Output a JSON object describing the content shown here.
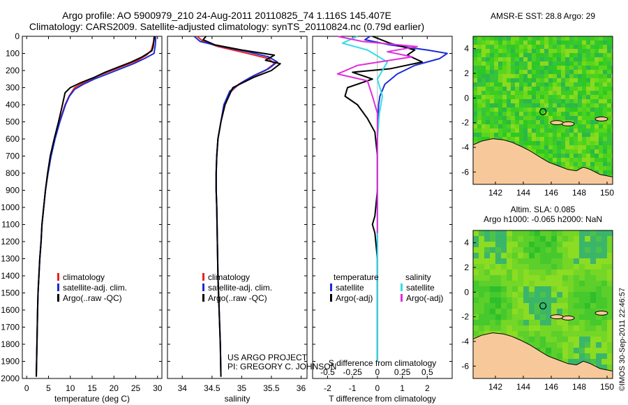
{
  "title_line1": "Argo profile: AO 5900979_210 24-Aug-2011 20110825_74 1.116S 145.407E",
  "title_line2": "Climatology: CARS2009. Satellite-adjusted climatology: synTS_20110824.nc (0.79d earlier)",
  "credit_project": "US ARGO PROJECT",
  "credit_pi": "PI: GREGORY C. JOHNSON",
  "timestamp": "©IMOS 30-Sep-2011 22:46:57",
  "colors": {
    "climatology": "#e8231d",
    "satellite": "#1c2bd6",
    "argo": "#000000",
    "sat_salinity": "#33dde6",
    "argo_salinity": "#e22ddd",
    "land": "#f7c99a",
    "ocean_a": "#33cc22",
    "ocean_b": "#88dd22"
  },
  "chart_data": [
    {
      "type": "line",
      "id": "temperature",
      "xlabel": "temperature (deg C)",
      "xlim": [
        -1,
        31
      ],
      "xticks": [
        0,
        5,
        10,
        15,
        20,
        25,
        30
      ],
      "ylim": [
        2000,
        0
      ],
      "yticks": [
        0,
        100,
        200,
        300,
        400,
        500,
        600,
        700,
        800,
        900,
        1000,
        1100,
        1200,
        1300,
        1400,
        1500,
        1600,
        1700,
        1800,
        1900,
        2000
      ],
      "legend": [
        "climatology",
        "satellite-adj. clim.",
        "Argo(..raw -QC)"
      ],
      "series": [
        {
          "name": "climatology",
          "color_key": "climatology",
          "x": [
            29.2,
            29.1,
            28.6,
            27.5,
            25.5,
            22.5,
            19.5,
            16.5,
            13.5,
            11.0,
            9.7,
            8.8,
            7.5,
            6.4,
            5.5,
            4.8,
            4.3,
            3.9,
            3.5,
            3.3,
            3.0,
            2.8,
            2.6,
            2.5,
            2.35,
            2.2
          ],
          "y": [
            0,
            30,
            80,
            110,
            140,
            170,
            200,
            230,
            265,
            300,
            350,
            400,
            500,
            600,
            700,
            800,
            900,
            1000,
            1100,
            1200,
            1300,
            1400,
            1500,
            1600,
            1800,
            1990
          ]
        },
        {
          "name": "satellite-adj. clim.",
          "color_key": "satellite",
          "x": [
            29.6,
            29.5,
            29.2,
            27.0,
            24.5,
            21.5,
            18.5,
            15.5,
            13.0,
            11.0,
            9.8,
            8.9,
            7.6,
            6.5,
            5.6,
            4.9,
            4.3,
            3.9,
            3.5,
            3.3,
            3.0,
            2.8,
            2.6,
            2.5,
            2.35,
            2.2
          ],
          "y": [
            0,
            50,
            100,
            130,
            160,
            190,
            220,
            250,
            280,
            310,
            350,
            400,
            500,
            600,
            700,
            800,
            900,
            1000,
            1100,
            1200,
            1300,
            1400,
            1500,
            1600,
            1800,
            1990
          ]
        },
        {
          "name": "Argo(..raw -QC)",
          "color_key": "argo",
          "x": [
            29.3,
            29.0,
            28.7,
            26.5,
            24.0,
            21.0,
            18.0,
            15.5,
            12.5,
            10.0,
            8.8,
            8.2,
            7.3,
            6.3,
            5.4,
            4.8,
            4.3,
            3.9,
            3.5,
            3.3,
            3.0,
            2.8,
            2.6,
            2.5,
            2.35,
            2.2
          ],
          "y": [
            0,
            60,
            85,
            120,
            150,
            180,
            210,
            240,
            270,
            300,
            330,
            400,
            500,
            600,
            700,
            800,
            900,
            1000,
            1100,
            1200,
            1300,
            1400,
            1500,
            1600,
            1800,
            1990
          ]
        }
      ]
    },
    {
      "type": "line",
      "id": "salinity",
      "xlabel": "salinity",
      "xlim": [
        33.75,
        36.1
      ],
      "xticks": [
        34,
        34.5,
        35,
        35.5,
        36
      ],
      "ylim": [
        2000,
        0
      ],
      "legend": [
        "climatology",
        "satellite-adj. clim.",
        "Argo(..raw -QC)"
      ],
      "series": [
        {
          "name": "climatology",
          "color_key": "climatology",
          "x": [
            34.25,
            34.35,
            34.6,
            35.1,
            35.45,
            35.55,
            35.4,
            35.15,
            34.95,
            34.8,
            34.7,
            34.65,
            34.6,
            34.58,
            34.57,
            34.57,
            34.58,
            34.59,
            34.6,
            34.61,
            34.62,
            34.63,
            34.64,
            34.65
          ],
          "y": [
            0,
            30,
            60,
            100,
            130,
            160,
            200,
            240,
            280,
            330,
            400,
            500,
            600,
            700,
            800,
            900,
            1000,
            1200,
            1400,
            1500,
            1600,
            1700,
            1800,
            1990
          ]
        },
        {
          "name": "satellite-adj. clim.",
          "color_key": "satellite",
          "x": [
            34.2,
            34.3,
            34.6,
            35.1,
            35.45,
            35.6,
            35.45,
            35.2,
            35.0,
            34.8,
            34.7,
            34.65,
            34.6,
            34.58,
            34.57,
            34.57,
            34.58,
            34.59,
            34.6,
            34.61,
            34.62,
            34.63,
            34.64,
            34.65
          ],
          "y": [
            0,
            30,
            55,
            90,
            120,
            150,
            190,
            230,
            270,
            320,
            400,
            500,
            600,
            700,
            800,
            900,
            1000,
            1200,
            1400,
            1500,
            1600,
            1700,
            1800,
            1990
          ]
        },
        {
          "name": "Argo(..raw -QC)",
          "color_key": "argo",
          "x": [
            34.4,
            34.35,
            34.55,
            35.0,
            35.55,
            35.4,
            35.65,
            35.5,
            35.2,
            34.85,
            34.72,
            34.65,
            34.6,
            34.58,
            34.57,
            34.57,
            34.58,
            34.59,
            34.6,
            34.61,
            34.62,
            34.63,
            34.64,
            34.65
          ],
          "y": [
            0,
            20,
            50,
            80,
            110,
            140,
            160,
            200,
            240,
            300,
            400,
            500,
            600,
            700,
            800,
            900,
            1000,
            1200,
            1400,
            1500,
            1600,
            1700,
            1800,
            1990
          ]
        }
      ]
    },
    {
      "type": "line",
      "id": "difference",
      "xlabel": "T difference from climatology",
      "xlabel_top": "S difference from climatology",
      "xlim": [
        -2.6,
        3.0
      ],
      "xticks": [
        -2,
        -1,
        0,
        1,
        2
      ],
      "sticks": [
        -0.5,
        -0.25,
        0,
        0.25,
        0.5
      ],
      "slim": [
        -0.65,
        0.75
      ],
      "ylim": [
        2000,
        0
      ],
      "legend_headers": [
        "temperature",
        "salinity"
      ],
      "legend": [
        "satellite",
        "Argo(-adj)",
        "satellite",
        "Argo(-adj)"
      ],
      "series": [
        {
          "name": "satellite",
          "quantity": "temperature",
          "color_key": "satellite",
          "x": [
            -0.3,
            -0.5,
            0.5,
            2.0,
            2.8,
            2.5,
            1.5,
            0.8,
            0.3,
            0.1,
            0.05,
            0.02,
            0.0,
            0.0,
            0.0,
            0.0,
            0.0,
            0.0,
            0.0
          ],
          "y": [
            0,
            20,
            50,
            80,
            100,
            130,
            170,
            220,
            280,
            350,
            400,
            500,
            600,
            800,
            1000,
            1200,
            1400,
            1700,
            1900
          ]
        },
        {
          "name": "Argo(-adj)",
          "quantity": "temperature",
          "color_key": "argo",
          "x": [
            -0.2,
            0.5,
            1.5,
            1.2,
            1.8,
            0.5,
            -1.0,
            -0.6,
            -0.2,
            -1.2,
            -1.3,
            -0.8,
            -0.4,
            -0.1,
            0.0,
            0.0,
            -0.1,
            -0.2,
            -0.1,
            0.0,
            0.0
          ],
          "y": [
            0,
            40,
            80,
            110,
            150,
            190,
            210,
            230,
            250,
            300,
            350,
            400,
            480,
            560,
            700,
            900,
            1050,
            1100,
            1150,
            1300,
            1900
          ]
        },
        {
          "name": "satellite",
          "quantity": "salinity",
          "color_key": "sat_salinity",
          "x": [
            -0.2,
            -0.35,
            -0.1,
            0.1,
            0.0,
            0.05,
            0.02,
            0.0,
            0.0,
            0.0,
            0.0,
            0.0,
            0.0
          ],
          "y": [
            0,
            40,
            80,
            150,
            250,
            350,
            450,
            600,
            800,
            1000,
            1200,
            1600,
            1900
          ]
        },
        {
          "name": "Argo(-adj)",
          "quantity": "salinity",
          "color_key": "argo_salinity",
          "x": [
            -0.4,
            -0.15,
            0.4,
            0.1,
            0.35,
            -0.2,
            -0.4,
            -0.1,
            -0.05,
            0.0,
            0.0,
            0.0,
            0.0
          ],
          "y": [
            0,
            30,
            60,
            90,
            120,
            170,
            220,
            260,
            350,
            450,
            600,
            900,
            1150
          ]
        }
      ]
    },
    {
      "type": "heatmap",
      "id": "sst_map",
      "title": "AMSR-E SST: 28.8 Argo: 29",
      "xlim": [
        140.4,
        150.4
      ],
      "ylim": [
        -7,
        5
      ],
      "xticks": [
        142,
        144,
        146,
        148,
        150
      ],
      "yticks": [
        -6,
        -4,
        -2,
        0,
        2,
        4
      ],
      "argo_position": {
        "lon": 145.407,
        "lat": -1.116
      }
    },
    {
      "type": "heatmap",
      "id": "sla_map",
      "title_line1": "Altim. SLA: 0.085",
      "title_line2": "Argo h1000: -0.065 h2000: NaN",
      "xlim": [
        140.4,
        150.4
      ],
      "ylim": [
        -7,
        5
      ],
      "xticks": [
        142,
        144,
        146,
        148,
        150
      ],
      "yticks": [
        -6,
        -4,
        -2,
        0,
        2,
        4
      ],
      "argo_position": {
        "lon": 145.407,
        "lat": -1.116
      }
    }
  ]
}
